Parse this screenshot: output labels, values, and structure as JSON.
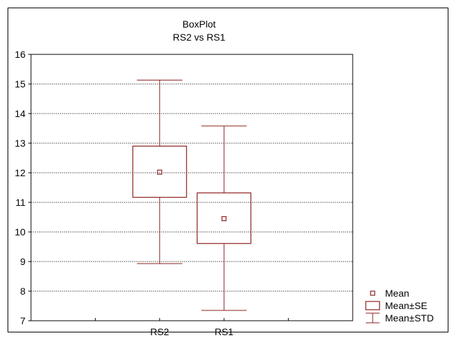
{
  "chart_data": {
    "type": "boxplot",
    "title": "BoxPlot",
    "subtitle": "RS2 vs RS1",
    "xlabel": "",
    "ylabel": "",
    "ylim": [
      7,
      16
    ],
    "yticks": [
      7,
      8,
      9,
      10,
      11,
      12,
      13,
      14,
      15,
      16
    ],
    "grid": true,
    "legend_position": "bottom-right",
    "color": "#8b1c1c",
    "categories": [
      "RS2",
      "RS1"
    ],
    "boxes": [
      {
        "label": "RS2",
        "mean": 12.02,
        "se_low": 11.17,
        "se_high": 12.9,
        "std_low": 8.93,
        "std_high": 15.13
      },
      {
        "label": "RS1",
        "mean": 10.45,
        "se_low": 9.61,
        "se_high": 11.32,
        "std_low": 7.35,
        "std_high": 13.58
      }
    ],
    "legend": [
      {
        "symbol": "mean-marker",
        "label": "Mean"
      },
      {
        "symbol": "se-box",
        "label": "Mean±SE"
      },
      {
        "symbol": "std-whisker",
        "label": "Mean±STD"
      }
    ]
  }
}
